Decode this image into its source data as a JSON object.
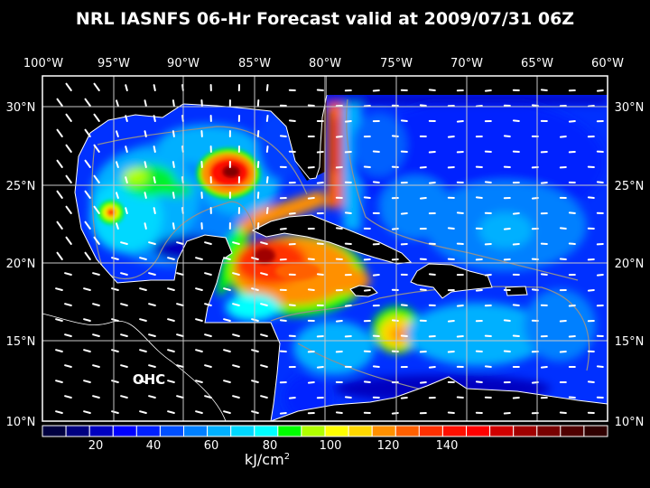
{
  "title": "NRL IASNFS  06-Hr Forecast valid at 2009/07/31 06Z",
  "field_label": "OHC",
  "axes": {
    "lon_labels": [
      "100°W",
      "95°W",
      "90°W",
      "85°W",
      "80°W",
      "75°W",
      "70°W",
      "65°W",
      "60°W"
    ],
    "lat_labels": [
      "30°N",
      "25°N",
      "20°N",
      "15°N",
      "10°N"
    ]
  },
  "colorbar": {
    "unit": "kJ/cm",
    "unit_sup": "2",
    "tick_labels": [
      "20",
      "40",
      "60",
      "80",
      "100",
      "120",
      "140"
    ],
    "colors": [
      "#000040",
      "#000080",
      "#0000c0",
      "#0000ff",
      "#0020ff",
      "#0050ff",
      "#0080ff",
      "#00b0ff",
      "#00d8ff",
      "#00ffff",
      "#00ff00",
      "#b0ff00",
      "#ffff00",
      "#ffd800",
      "#ff9000",
      "#ff6000",
      "#ff3000",
      "#ff1000",
      "#ff0000",
      "#d00000",
      "#a00000",
      "#780000",
      "#500000",
      "#300000"
    ]
  }
}
